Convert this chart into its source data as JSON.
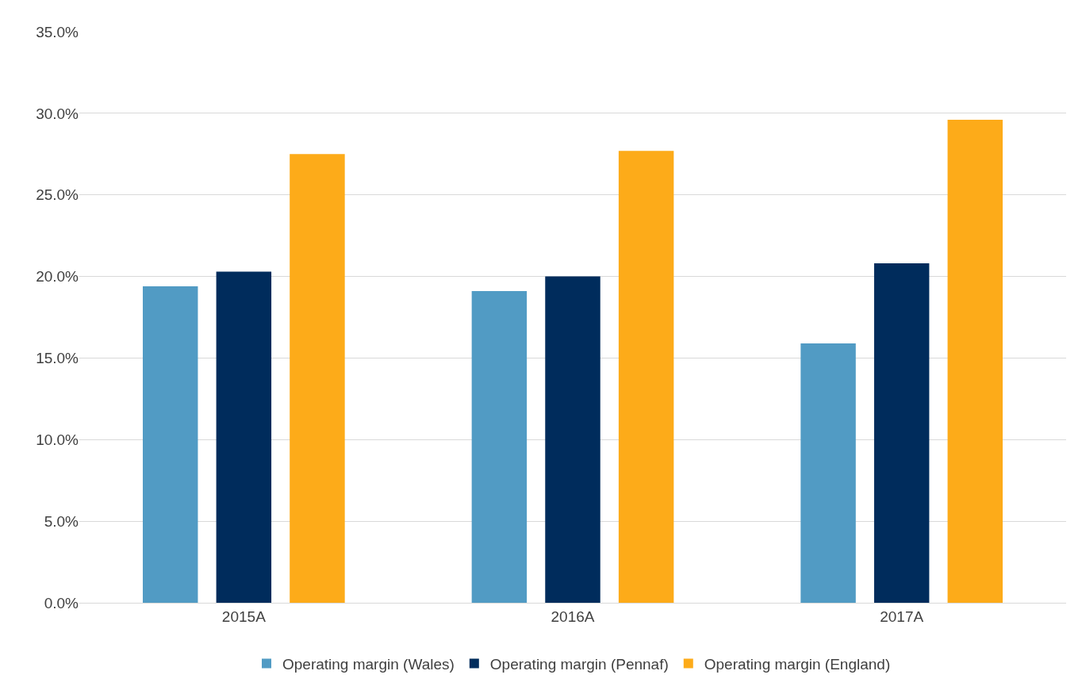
{
  "chart_data": {
    "type": "bar",
    "categories": [
      "2015A",
      "2016A",
      "2017A"
    ],
    "series": [
      {
        "name": "Operating margin (Wales)",
        "color": "#519bc4",
        "values": [
          19.4,
          19.1,
          15.9
        ]
      },
      {
        "name": "Operating margin (Pennaf)",
        "color": "#002c5c",
        "values": [
          20.3,
          20.0,
          20.8
        ]
      },
      {
        "name": "Operating margin (England)",
        "color": "#fdab19",
        "values": [
          27.5,
          27.7,
          29.6
        ]
      }
    ],
    "ylim": [
      0,
      35
    ],
    "yticks": [
      {
        "value": 0,
        "label": "0.0%"
      },
      {
        "value": 5,
        "label": "5.0%"
      },
      {
        "value": 10,
        "label": "10.0%"
      },
      {
        "value": 15,
        "label": "15.0%"
      },
      {
        "value": 20,
        "label": "20.0%"
      },
      {
        "value": 25,
        "label": "25.0%"
      },
      {
        "value": 30,
        "label": "30.0%"
      },
      {
        "value": 35,
        "label": "35.0%"
      }
    ],
    "grid": "y",
    "legend": "bottom"
  }
}
